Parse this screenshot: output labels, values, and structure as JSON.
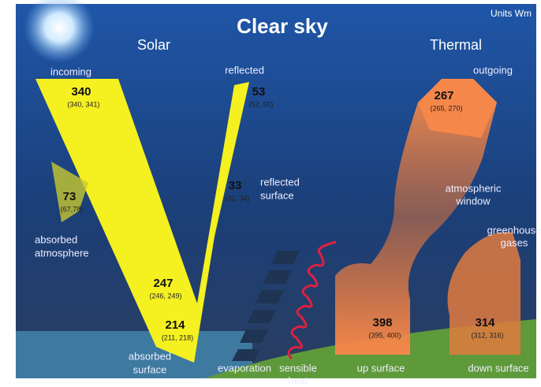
{
  "header": {
    "title": "Clear sky",
    "units": "Units Wm"
  },
  "sections": {
    "solar": "Solar",
    "thermal": "Thermal"
  },
  "flows": [
    {
      "label": [
        "incoming"
      ],
      "value": 340,
      "range": "(340, 341)"
    },
    {
      "label": [
        "reflected"
      ],
      "value": 53,
      "range": "(52, 55)"
    },
    {
      "label": [
        "reflected",
        "surface"
      ],
      "value": 33,
      "range": "(31, 34)"
    },
    {
      "label": [
        "absorbed",
        "atmosphere"
      ],
      "value": 73,
      "range": "(67,78)"
    },
    {
      "label": [],
      "value": 247,
      "range": "(246, 249)"
    },
    {
      "label": [
        "absorbed",
        "surface"
      ],
      "value": 214,
      "range": "(211, 218)"
    },
    {
      "label": [
        "outgoing"
      ],
      "value": 267,
      "range": "(265, 270)"
    },
    {
      "label": [
        "up surface"
      ],
      "value": 398,
      "range": "(395, 400)"
    },
    {
      "label": [
        "down surface"
      ],
      "value": 314,
      "range": "(312, 316)"
    }
  ],
  "labels": [
    [
      "evaporation"
    ],
    [
      "sensible",
      "heat"
    ],
    [
      "atmospheric",
      "window"
    ],
    [
      "greenhouse",
      "gases"
    ]
  ]
}
